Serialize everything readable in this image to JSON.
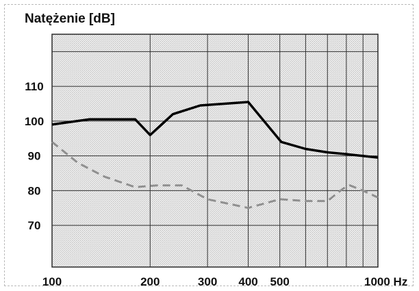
{
  "chart_data": {
    "type": "line",
    "title": "Natężenie [dB]",
    "xlabel": "Hz",
    "ylabel": "",
    "x_scale": "log",
    "xlim": [
      100,
      1000
    ],
    "ylim": [
      58,
      125
    ],
    "grid": true,
    "x_ticks": [
      {
        "value": 100,
        "label": "100"
      },
      {
        "value": 200,
        "label": "200"
      },
      {
        "value": 300,
        "label": "300"
      },
      {
        "value": 400,
        "label": "400"
      },
      {
        "value": 500,
        "label": "500"
      },
      {
        "value": 1000,
        "label": "1000 Hz"
      }
    ],
    "x_gridlines": [
      200,
      300,
      400,
      500,
      600,
      700,
      800,
      900
    ],
    "y_ticks": [
      {
        "value": 70,
        "label": "70"
      },
      {
        "value": 80,
        "label": "80"
      },
      {
        "value": 90,
        "label": "90"
      },
      {
        "value": 100,
        "label": "100"
      },
      {
        "value": 110,
        "label": "110"
      }
    ],
    "y_gridlines": [
      70,
      80,
      90,
      100,
      110,
      120
    ],
    "series": [
      {
        "style": "solid",
        "color": "#000000",
        "points": [
          [
            100,
            99.0
          ],
          [
            130,
            100.5
          ],
          [
            180,
            100.5
          ],
          [
            200,
            96.0
          ],
          [
            235,
            102.0
          ],
          [
            285,
            104.5
          ],
          [
            400,
            105.5
          ],
          [
            505,
            94.0
          ],
          [
            600,
            92.0
          ],
          [
            700,
            91.0
          ],
          [
            800,
            90.5
          ],
          [
            1000,
            89.5
          ]
        ]
      },
      {
        "style": "dashed",
        "color": "#8f8f8f",
        "points": [
          [
            100,
            94.0
          ],
          [
            120,
            88.0
          ],
          [
            145,
            84.0
          ],
          [
            180,
            81.0
          ],
          [
            210,
            81.5
          ],
          [
            250,
            81.5
          ],
          [
            300,
            77.5
          ],
          [
            400,
            75.0
          ],
          [
            500,
            77.5
          ],
          [
            600,
            77.0
          ],
          [
            700,
            77.0
          ],
          [
            780,
            80.5
          ],
          [
            820,
            81.5
          ],
          [
            900,
            80.0
          ],
          [
            1000,
            78.0
          ]
        ]
      }
    ]
  }
}
